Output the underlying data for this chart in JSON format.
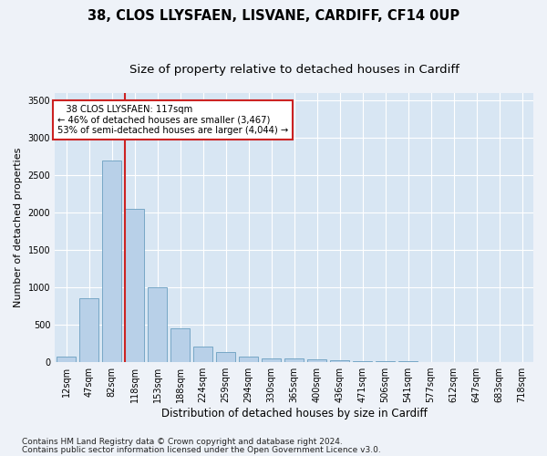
{
  "title1": "38, CLOS LLYSFAEN, LISVANE, CARDIFF, CF14 0UP",
  "title2": "Size of property relative to detached houses in Cardiff",
  "xlabel": "Distribution of detached houses by size in Cardiff",
  "ylabel": "Number of detached properties",
  "categories": [
    "12sqm",
    "47sqm",
    "82sqm",
    "118sqm",
    "153sqm",
    "188sqm",
    "224sqm",
    "259sqm",
    "294sqm",
    "330sqm",
    "365sqm",
    "400sqm",
    "436sqm",
    "471sqm",
    "506sqm",
    "541sqm",
    "577sqm",
    "612sqm",
    "647sqm",
    "683sqm",
    "718sqm"
  ],
  "values": [
    75,
    850,
    2700,
    2050,
    1000,
    450,
    210,
    135,
    75,
    55,
    50,
    35,
    20,
    15,
    10,
    8,
    5,
    4,
    3,
    2,
    2
  ],
  "bar_color": "#b8d0e8",
  "bar_edge_color": "#6a9fc0",
  "vline_bin": 3,
  "vline_color": "#cc2222",
  "annotation_line1": "   38 CLOS LLYSFAEN: 117sqm",
  "annotation_line2": "← 46% of detached houses are smaller (3,467)",
  "annotation_line3": "53% of semi-detached houses are larger (4,044) →",
  "annotation_box_color": "#ffffff",
  "annotation_box_edge": "#cc2222",
  "ylim": [
    0,
    3600
  ],
  "yticks": [
    0,
    500,
    1000,
    1500,
    2000,
    2500,
    3000,
    3500
  ],
  "footer1": "Contains HM Land Registry data © Crown copyright and database right 2024.",
  "footer2": "Contains public sector information licensed under the Open Government Licence v3.0.",
  "bg_color": "#eef2f8",
  "plot_bg_color": "#d8e6f3",
  "grid_color": "#ffffff",
  "title1_fontsize": 10.5,
  "title2_fontsize": 9.5,
  "xlabel_fontsize": 8.5,
  "ylabel_fontsize": 8,
  "tick_fontsize": 7,
  "footer_fontsize": 6.5
}
